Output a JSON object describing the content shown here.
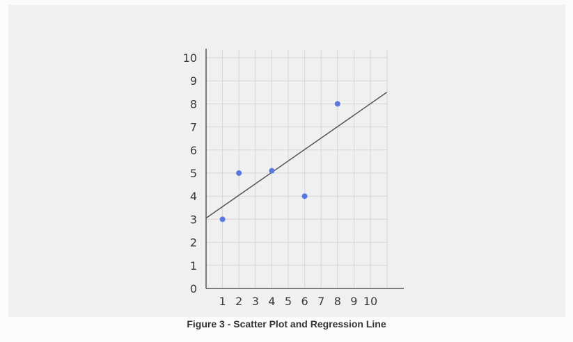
{
  "caption": "Figure 3 - Scatter Plot and Regression Line",
  "chart_data": {
    "type": "scatter",
    "title": "",
    "xlabel": "",
    "ylabel": "",
    "xlim": [
      0,
      10.6
    ],
    "ylim": [
      0,
      10
    ],
    "x_ticks": [
      "1",
      "2",
      "3",
      "4",
      "5",
      "6",
      "7",
      "8",
      "9",
      "10"
    ],
    "y_ticks": [
      "0",
      "1",
      "2",
      "3",
      "4",
      "5",
      "6",
      "7",
      "8",
      "9",
      "10"
    ],
    "grid": true,
    "points": [
      {
        "x": 1,
        "y": 3
      },
      {
        "x": 2,
        "y": 5
      },
      {
        "x": 4,
        "y": 5.1
      },
      {
        "x": 6,
        "y": 4
      },
      {
        "x": 8,
        "y": 8
      }
    ],
    "regression_line": {
      "x1": 0,
      "y1": 3.05,
      "x2": 11,
      "y2": 8.5
    },
    "colors": {
      "points": "#5b78e0",
      "line": "#555555",
      "grid": "#d5d5d5",
      "axis": "#555555"
    }
  }
}
